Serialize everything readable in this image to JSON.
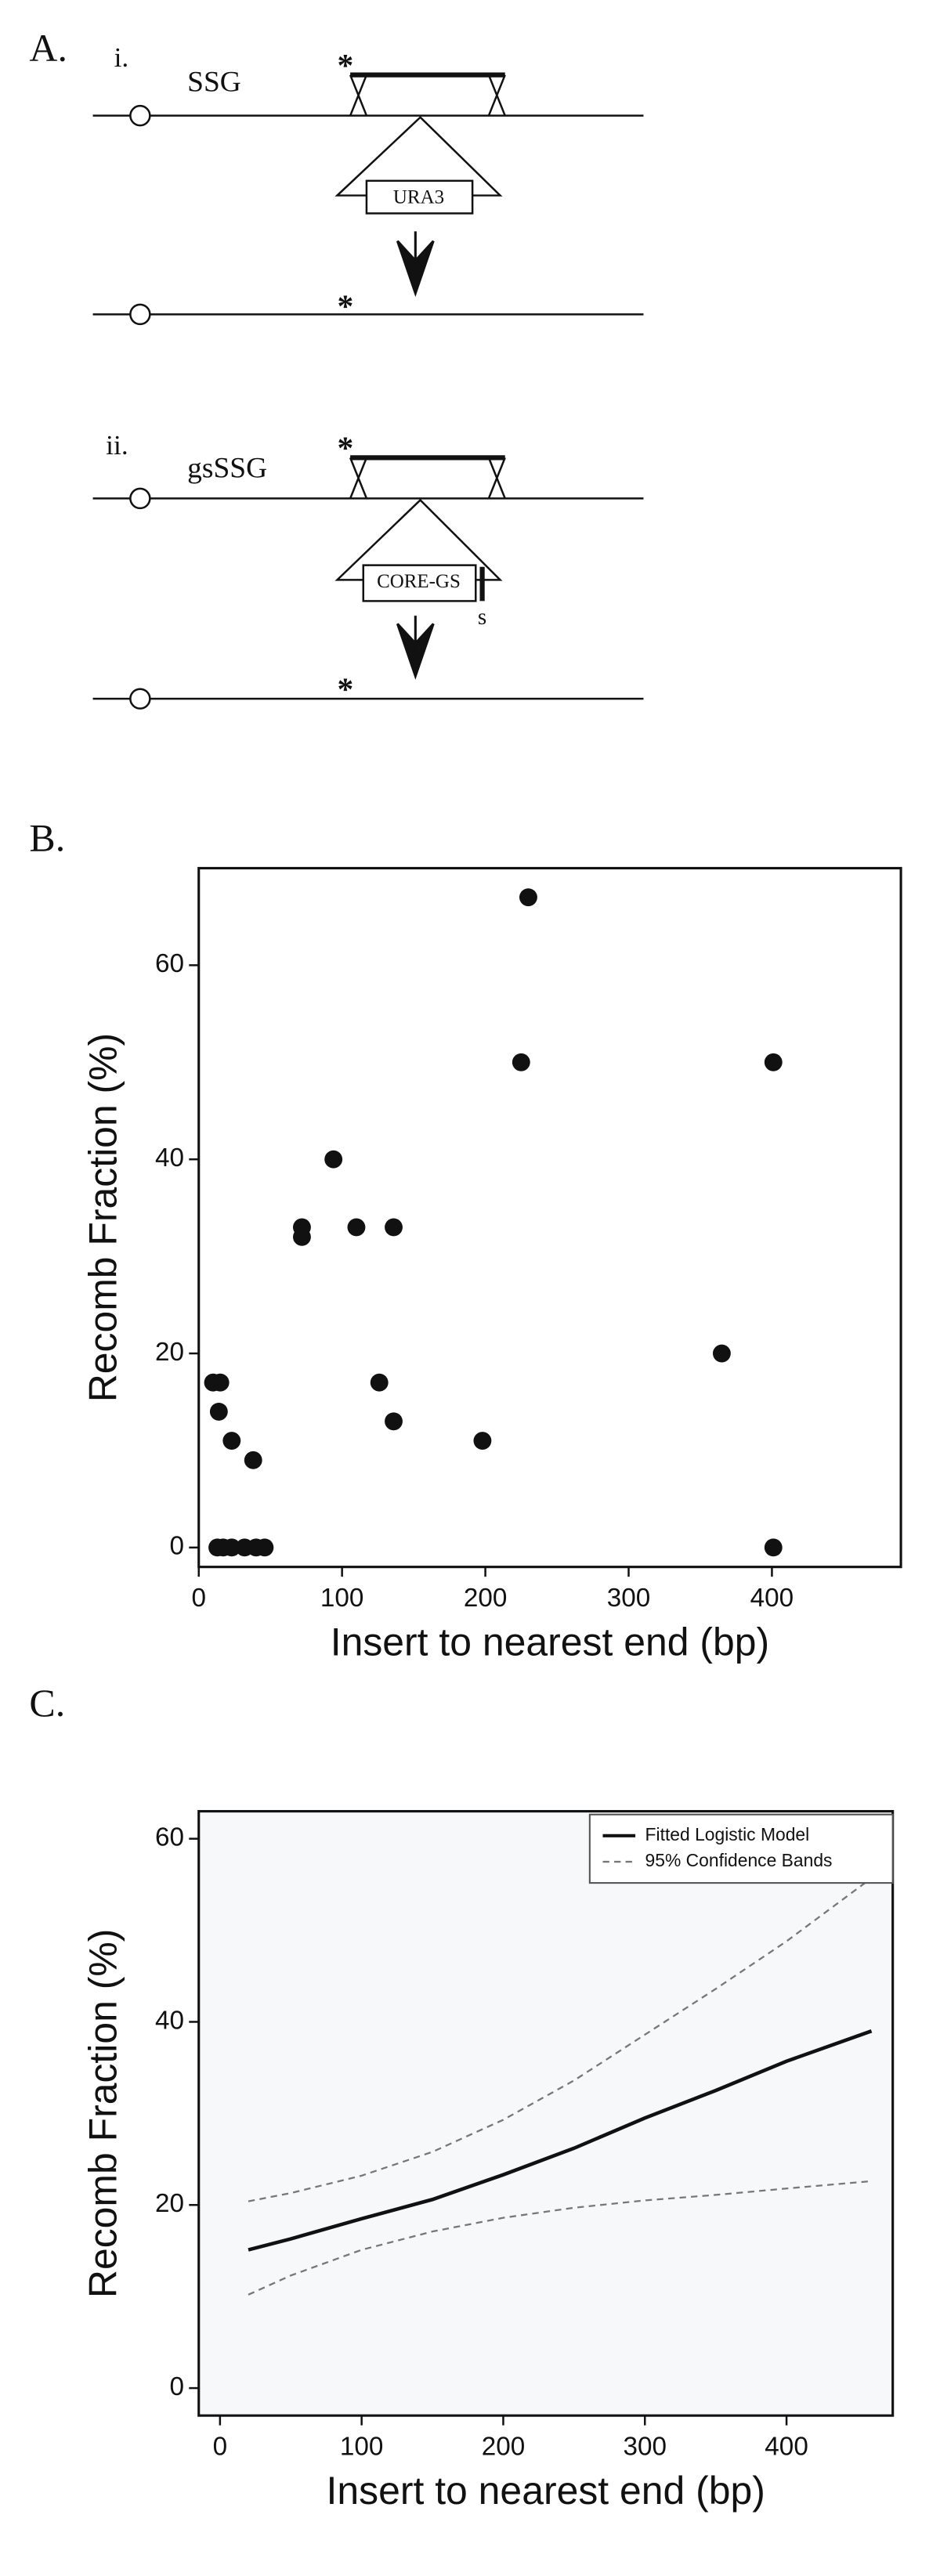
{
  "panel_labels": [
    "A.",
    "B.",
    "C."
  ],
  "diagram": {
    "sub_i": "i.",
    "label_i": "SSG",
    "box_i": "URA3",
    "sub_ii": "ii.",
    "label_ii": "gsSSG",
    "box_ii": "CORE-GS",
    "site": "s",
    "star": "*"
  },
  "chart_data": [
    {
      "type": "scatter",
      "xlabel": "Insert to nearest end (bp)",
      "ylabel": "Recomb Fraction (%)",
      "x": [
        10,
        15,
        14,
        23,
        38,
        72,
        72,
        94,
        110,
        136,
        126,
        136,
        198,
        225,
        230,
        365,
        401,
        401,
        13,
        17,
        23,
        32,
        40,
        46
      ],
      "values": [
        17,
        17,
        14,
        11,
        9,
        33,
        32,
        40,
        33,
        33,
        17,
        13,
        11,
        50,
        67,
        20,
        50,
        0,
        0,
        0,
        0,
        0,
        0,
        0
      ],
      "color": "#111111",
      "xlim": [
        0,
        490
      ],
      "ylim": [
        -2,
        70
      ],
      "xticks": [
        0,
        100,
        200,
        300,
        400
      ],
      "yticks": [
        0,
        20,
        40,
        60
      ]
    },
    {
      "type": "line",
      "xlabel": "Insert to nearest end (bp)",
      "ylabel": "Recomb Fraction (%)",
      "x": [
        20,
        50,
        100,
        150,
        200,
        250,
        300,
        350,
        400,
        460
      ],
      "series": [
        {
          "name": "Fitted Logistic Model",
          "color": "#111111",
          "style": "solid",
          "values": [
            15.1,
            16.3,
            18.5,
            20.6,
            23.3,
            26.2,
            29.5,
            32.5,
            35.7,
            39.0
          ]
        },
        {
          "name": "95% Confidence Bands",
          "color": "#777777",
          "style": "dashed",
          "values": [
            20.4,
            21.3,
            23.2,
            25.8,
            29.3,
            33.6,
            38.6,
            43.6,
            48.8,
            55.7
          ],
          "lower": [
            10.2,
            12.3,
            15.1,
            17.1,
            18.6,
            19.7,
            20.5,
            21.1,
            21.8,
            22.6
          ]
        }
      ],
      "xlim": [
        -15,
        475
      ],
      "ylim": [
        -3,
        63
      ],
      "xticks": [
        0,
        100,
        200,
        300,
        400
      ],
      "yticks": [
        0,
        20,
        40,
        60
      ],
      "legend": "top-right",
      "background": "#f6f8fa"
    }
  ]
}
